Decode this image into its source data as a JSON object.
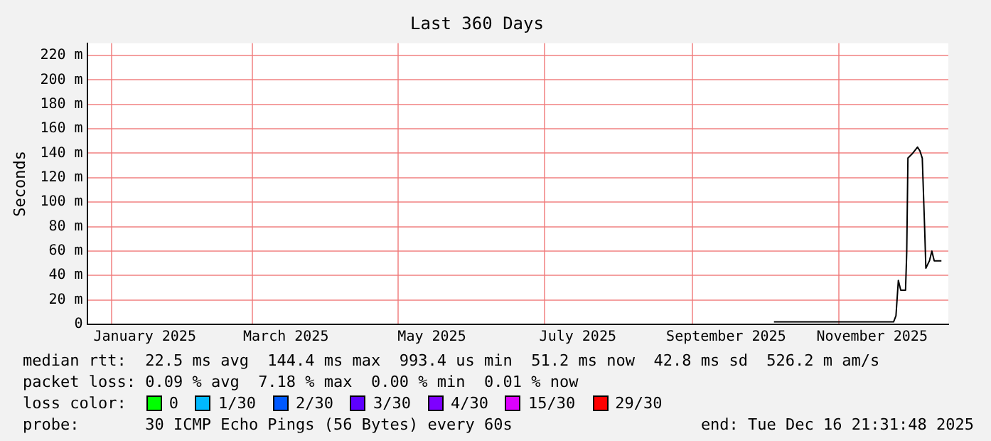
{
  "chart_data": {
    "type": "line",
    "title": "Last 360 Days",
    "ylabel": "Seconds",
    "x": [
      "2025-10-05",
      "2025-10-20",
      "2025-11-05",
      "2025-11-24",
      "2025-11-25",
      "2025-11-26",
      "2025-11-27",
      "2025-11-29",
      "2025-11-29T12:00",
      "2025-11-30",
      "2025-12-02",
      "2025-12-04",
      "2025-12-05",
      "2025-12-06",
      "2025-12-07",
      "2025-12-07T12:00",
      "2025-12-09",
      "2025-12-10",
      "2025-12-11",
      "2025-12-14"
    ],
    "series": [
      {
        "color": "#000000",
        "values": [
          2,
          2,
          2,
          2,
          7,
          36,
          28,
          28,
          59,
          136,
          140,
          145,
          142,
          136,
          78,
          46,
          52,
          60,
          52,
          52
        ]
      }
    ],
    "xlim": [
      "2024-12-21T21:31",
      "2025-12-16T21:31"
    ],
    "xticks": [
      {
        "value": "2025-01-01",
        "label": null
      },
      {
        "value": "2025-01-15",
        "label": "January 2025"
      },
      {
        "value": "2025-03-01",
        "label": null
      },
      {
        "value": "2025-03-15",
        "label": "March 2025"
      },
      {
        "value": "2025-05-01",
        "label": null
      },
      {
        "value": "2025-05-15",
        "label": "May 2025"
      },
      {
        "value": "2025-07-01",
        "label": null
      },
      {
        "value": "2025-07-15",
        "label": "July 2025"
      },
      {
        "value": "2025-09-01",
        "label": null
      },
      {
        "value": "2025-09-15",
        "label": "September 2025"
      },
      {
        "value": "2025-11-01",
        "label": null
      },
      {
        "value": "2025-11-15",
        "label": "November 2025"
      }
    ],
    "ylim": [
      0,
      230
    ],
    "yticks": [
      0,
      {
        "value": 20,
        "label": "20 m"
      },
      {
        "value": 40,
        "label": "40 m"
      },
      {
        "value": 60,
        "label": "60 m"
      },
      {
        "value": 80,
        "label": "80 m"
      },
      {
        "value": 100,
        "label": "100 m"
      },
      {
        "value": 120,
        "label": "120 m"
      },
      {
        "value": 140,
        "label": "140 m"
      },
      {
        "value": 160,
        "label": "160 m"
      },
      {
        "value": 180,
        "label": "180 m"
      },
      {
        "value": 200,
        "label": "200 m"
      },
      {
        "value": 220,
        "label": "220 m"
      }
    ],
    "grid": true,
    "legend": false,
    "marker": "none",
    "line_style": "solid",
    "annotations": [
      "median rtt:  22.5 ms avg  144.4 ms max  993.4 us min  51.2 ms now  42.8 ms sd  526.2 m am/s",
      "packet loss: 0.09 % avg  7.18 % max  0.00 % min  0.01 % now",
      "loss color:",
      "0",
      "1/30",
      "2/30",
      "3/30",
      "4/30",
      "15/30",
      "29/30",
      "probe:       30 ICMP Echo Pings (56 Bytes) every 60s",
      "end: Tue Dec 16 21:31:48 2025"
    ]
  }
}
